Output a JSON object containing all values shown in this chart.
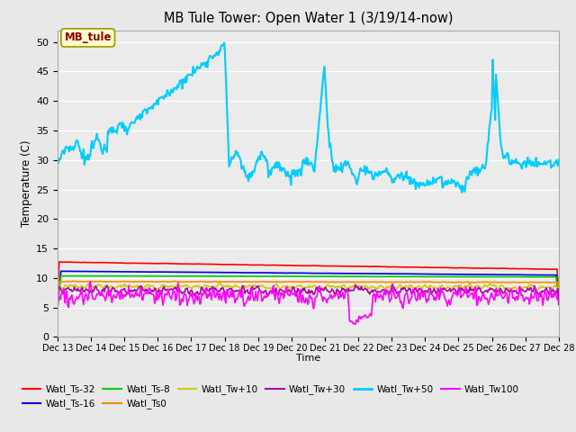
{
  "title": "MB Tule Tower: Open Water 1 (3/19/14-now)",
  "xlabel": "Time",
  "ylabel": "Temperature (C)",
  "ylim": [
    0,
    52
  ],
  "yticks": [
    0,
    5,
    10,
    15,
    20,
    25,
    30,
    35,
    40,
    45,
    50
  ],
  "bg_color": "#e8e8e8",
  "plot_bg_color": "#ebebeb",
  "legend_label": "MB_tule",
  "series": {
    "Watl_Ts-32": {
      "color": "#ff0000",
      "lw": 1.2
    },
    "Watl_Ts-16": {
      "color": "#0000dd",
      "lw": 1.2
    },
    "Watl_Ts-8": {
      "color": "#00cc00",
      "lw": 1.2
    },
    "Watl_Ts0": {
      "color": "#ff8800",
      "lw": 1.2
    },
    "Watl_Tw+10": {
      "color": "#cccc00",
      "lw": 1.2
    },
    "Watl_Tw+30": {
      "color": "#aa00aa",
      "lw": 1.2
    },
    "Watl_Tw+50": {
      "color": "#00ccff",
      "lw": 1.5
    },
    "Watl_Tw100": {
      "color": "#ff00ff",
      "lw": 1.2
    }
  },
  "xtick_labels": [
    "Dec 13",
    "Dec 14",
    "Dec 15",
    "Dec 16",
    "Dec 17",
    "Dec 18",
    "Dec 19",
    "Dec 20",
    "Dec 21",
    "Dec 22",
    "Dec 23",
    "Dec 24",
    "Dec 25",
    "Dec 26",
    "Dec 27",
    "Dec 28"
  ],
  "xtick_positions": [
    13,
    14,
    15,
    16,
    17,
    18,
    19,
    20,
    21,
    22,
    23,
    24,
    25,
    26,
    27,
    28
  ],
  "x_start": 13,
  "x_end": 28,
  "n_points": 600
}
